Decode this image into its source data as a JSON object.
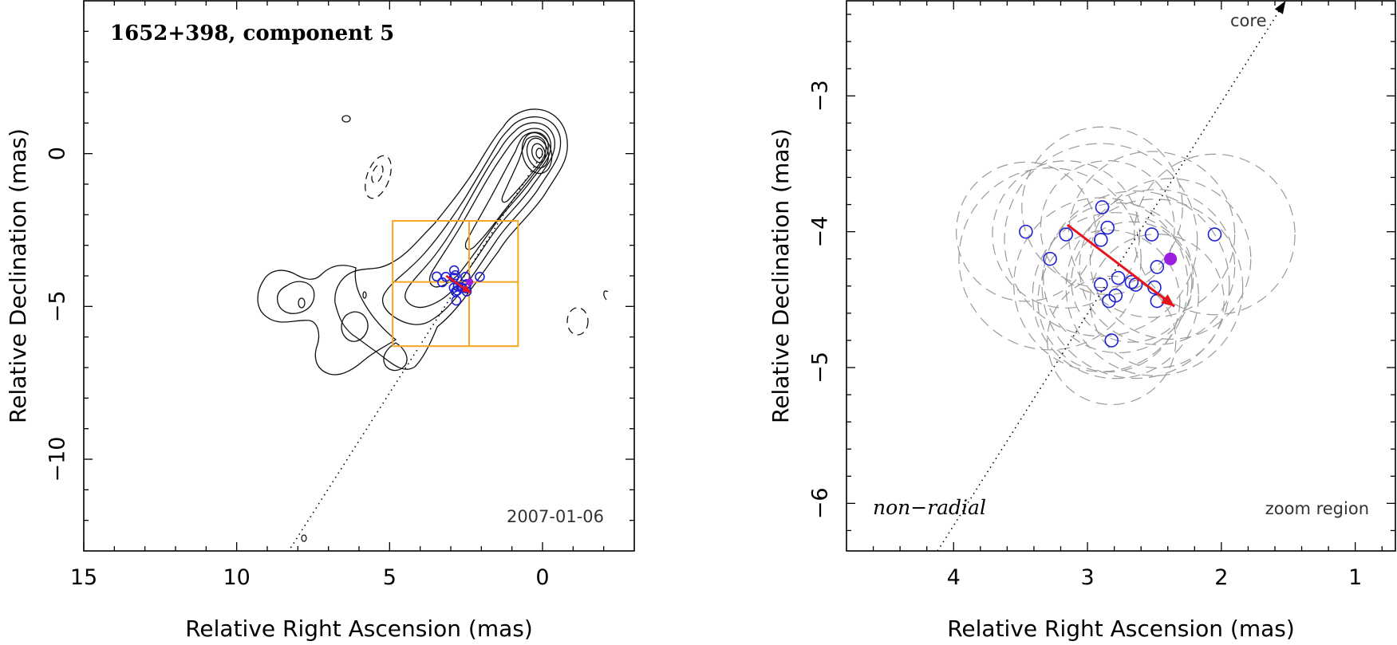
{
  "colors": {
    "axis": "#000000",
    "contour": "#111111",
    "components": "#1f1fd6",
    "filled_component": "#9a1fe0",
    "arrow": "#e8141c",
    "zoom_box": "#f5a623",
    "uncertainty_circles": "#9a9a9a"
  },
  "chart_data": [
    {
      "type": "scatter",
      "panel": "left",
      "title": "1652+398, component 5",
      "date_label": "2007-01-06",
      "xlabel": "Relative Right Ascension (mas)",
      "ylabel": "Relative Declination (mas)",
      "xlim": [
        15,
        -3
      ],
      "ylim": [
        -13,
        5
      ],
      "xticks": [
        15,
        10,
        5,
        0
      ],
      "yticks": [
        0,
        -5,
        -10
      ],
      "core_position": [
        0,
        0
      ],
      "jet_axis_angle_deg": 217,
      "zoom_box": {
        "x_range": [
          0.8,
          4.9
        ],
        "y_range": [
          -6.3,
          -2.2
        ],
        "cross": [
          2.4,
          -4.2
        ]
      },
      "motion_vector": {
        "from": [
          3.15,
          -4.0
        ],
        "to": [
          2.35,
          -4.55
        ]
      },
      "component_positions": [
        [
          3.46,
          -4.02
        ],
        [
          3.28,
          -4.21
        ],
        [
          3.16,
          -4.03
        ],
        [
          2.89,
          -3.82
        ],
        [
          2.9,
          -4.06
        ],
        [
          2.85,
          -3.98
        ],
        [
          2.52,
          -4.03
        ],
        [
          2.05,
          -4.03
        ],
        [
          2.9,
          -4.39
        ],
        [
          2.77,
          -4.35
        ],
        [
          2.67,
          -4.37
        ],
        [
          2.64,
          -4.39
        ],
        [
          2.48,
          -4.27
        ],
        [
          2.5,
          -4.41
        ],
        [
          2.84,
          -4.52
        ],
        [
          2.79,
          -4.48
        ],
        [
          2.48,
          -4.51
        ],
        [
          2.82,
          -4.81
        ]
      ],
      "filled_component": [
        2.38,
        -4.2
      ]
    },
    {
      "type": "scatter",
      "panel": "right",
      "xlabel": "Relative Right Ascension (mas)",
      "ylabel": "Relative Declination (mas)",
      "xlim": [
        4.8,
        0.7
      ],
      "ylim": [
        -6.35,
        -2.3
      ],
      "xticks": [
        4,
        3,
        2,
        1
      ],
      "yticks": [
        -3,
        -4,
        -5,
        -6
      ],
      "core_label": "core",
      "annotation_left": "non−radial",
      "annotation_right": "zoom region",
      "jet_axis": {
        "from": [
          4.12,
          -6.35
        ],
        "to": [
          1.52,
          -2.3
        ]
      },
      "motion_vector": {
        "from": [
          3.15,
          -3.95
        ],
        "to": [
          2.35,
          -4.55
        ]
      },
      "component_positions": [
        [
          3.46,
          -4.0
        ],
        [
          3.28,
          -4.2
        ],
        [
          3.16,
          -4.02
        ],
        [
          2.89,
          -3.82
        ],
        [
          2.9,
          -4.06
        ],
        [
          2.85,
          -3.97
        ],
        [
          2.52,
          -4.02
        ],
        [
          2.05,
          -4.02
        ],
        [
          2.9,
          -4.39
        ],
        [
          2.77,
          -4.34
        ],
        [
          2.67,
          -4.37
        ],
        [
          2.64,
          -4.39
        ],
        [
          2.48,
          -4.26
        ],
        [
          2.5,
          -4.41
        ],
        [
          2.84,
          -4.51
        ],
        [
          2.79,
          -4.47
        ],
        [
          2.48,
          -4.51
        ],
        [
          2.82,
          -4.8
        ]
      ],
      "filled_component": [
        2.38,
        -4.2
      ],
      "uncertainty_circles": [
        [
          3.46,
          -4.0,
          0.52
        ],
        [
          3.28,
          -4.2,
          0.68
        ],
        [
          3.16,
          -4.02,
          0.55
        ],
        [
          2.89,
          -3.82,
          0.6
        ],
        [
          2.9,
          -4.06,
          0.72
        ],
        [
          2.85,
          -3.97,
          0.5
        ],
        [
          2.52,
          -4.02,
          0.62
        ],
        [
          2.05,
          -4.02,
          0.6
        ],
        [
          2.9,
          -4.39,
          0.65
        ],
        [
          2.77,
          -4.34,
          0.56
        ],
        [
          2.67,
          -4.37,
          0.45
        ],
        [
          2.64,
          -4.39,
          0.7
        ],
        [
          2.48,
          -4.26,
          0.58
        ],
        [
          2.5,
          -4.41,
          0.66
        ],
        [
          2.84,
          -4.51,
          0.53
        ],
        [
          2.79,
          -4.47,
          0.62
        ],
        [
          2.48,
          -4.51,
          0.5
        ],
        [
          2.82,
          -4.8,
          0.48
        ],
        [
          2.38,
          -4.2,
          0.6
        ]
      ]
    }
  ]
}
